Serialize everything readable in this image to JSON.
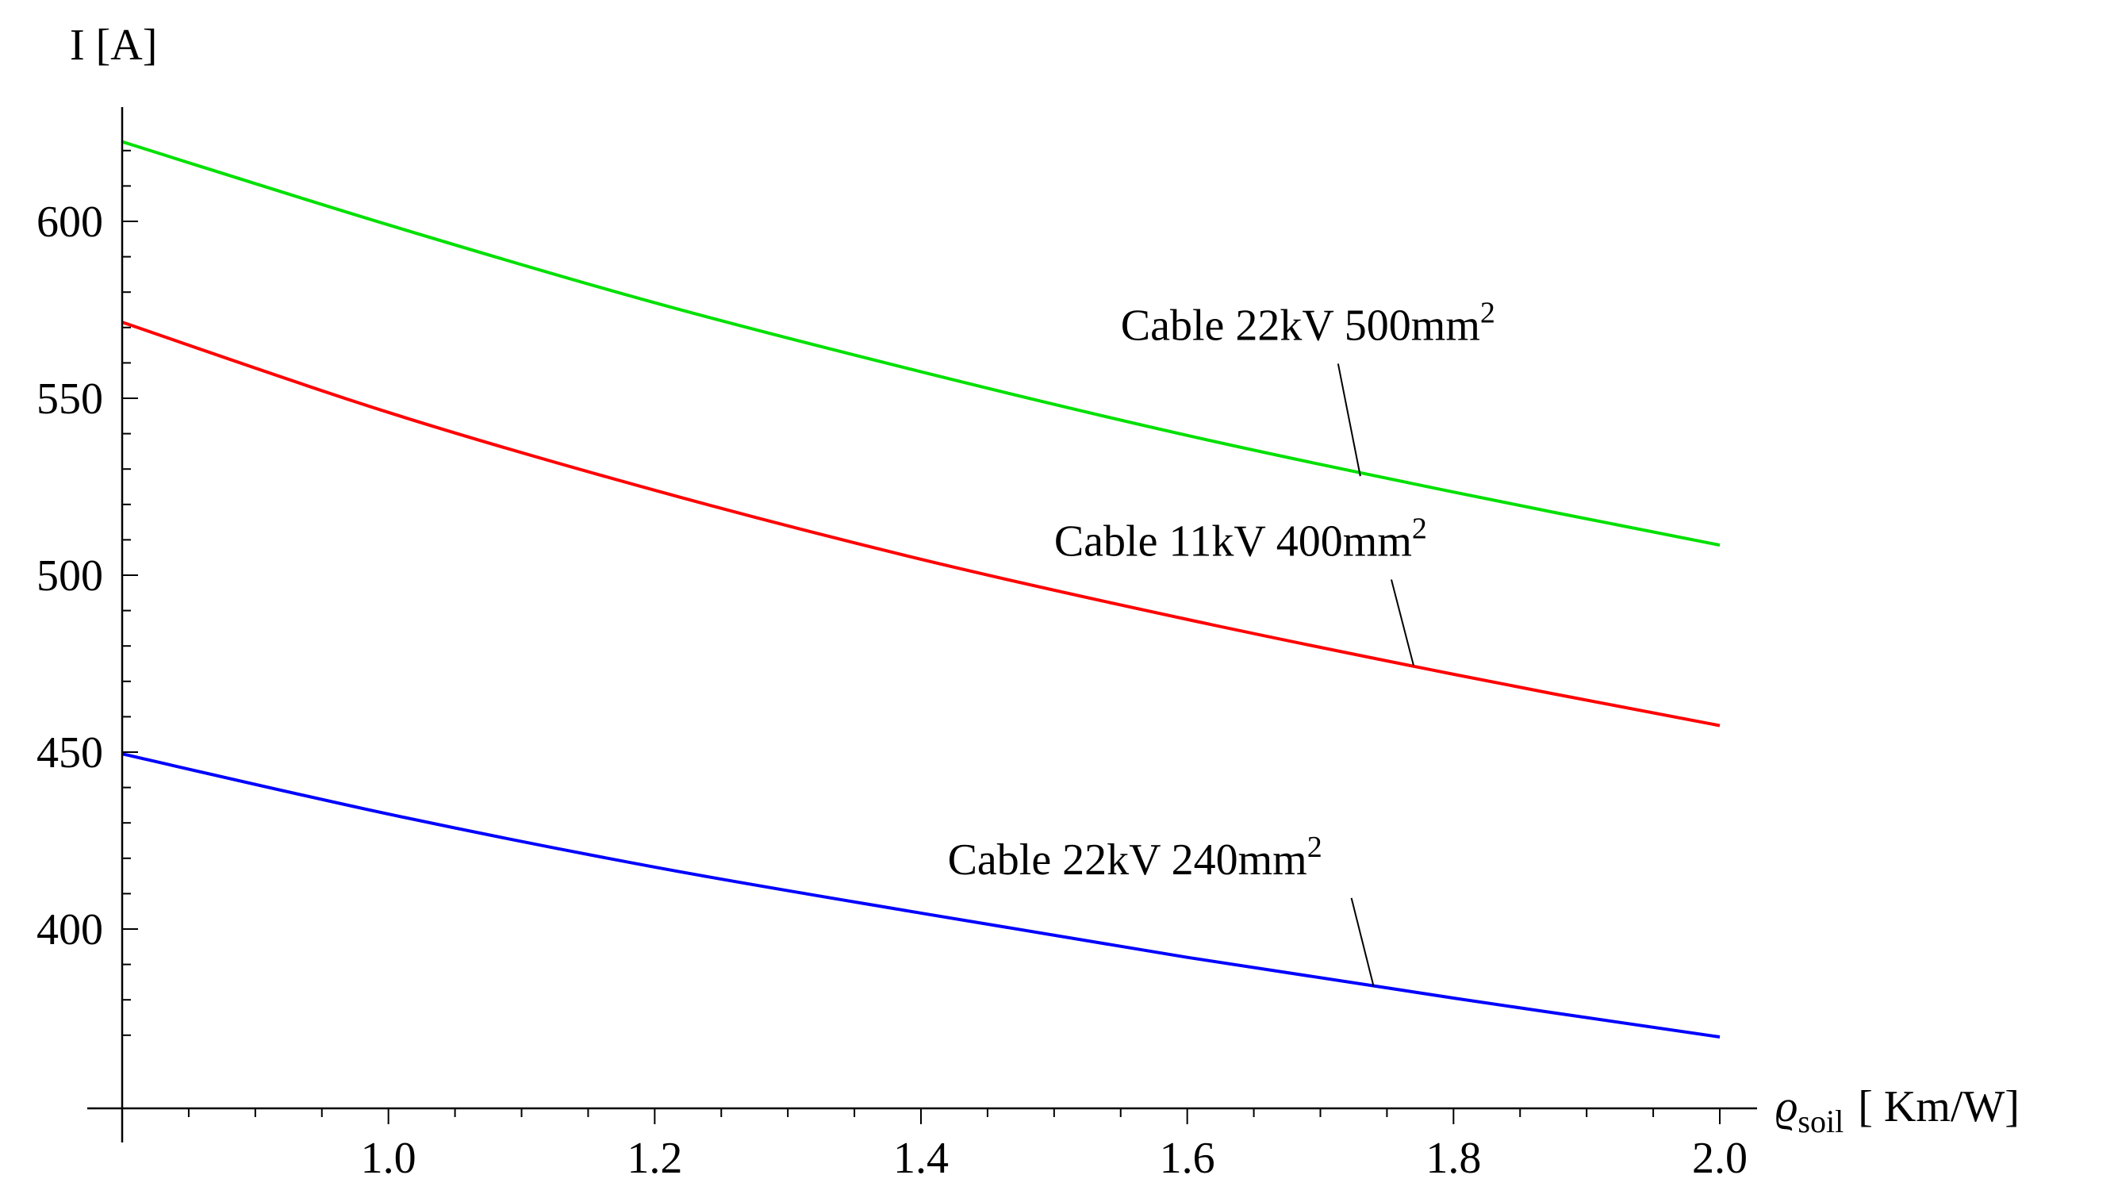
{
  "chart_data": {
    "type": "line",
    "title": "",
    "xlabel_symbol": "ϱ",
    "xlabel_sub": "soil",
    "xlabel_unit": "[ Km/W]",
    "ylabel": "I [A]",
    "xlim": [
      0.8,
      2.05
    ],
    "ylim": [
      358,
      630
    ],
    "xticks": [
      1.0,
      1.2,
      1.4,
      1.6,
      1.8,
      2.0
    ],
    "xtick_labels": [
      "1.0",
      "1.2",
      "1.4",
      "1.6",
      "1.8",
      "2.0"
    ],
    "xminor_step": 0.05,
    "yticks": [
      400,
      450,
      500,
      550,
      600
    ],
    "ytick_labels": [
      "400",
      "450",
      "500",
      "550",
      "600"
    ],
    "yminor_step": 10,
    "x": [
      0.8,
      1.0,
      1.2,
      1.4,
      1.6,
      1.8,
      2.0
    ],
    "series": [
      {
        "name": "Cable 22kV 500mm",
        "sup": "2",
        "color": "#00e000",
        "values": [
          622.5,
          599.0,
          577.0,
          557.5,
          539.5,
          523.5,
          508.5
        ],
        "label_at": [
          1.55,
          566.5
        ],
        "label_point": [
          1.73,
          528.0
        ]
      },
      {
        "name": "Cable 11kV 400mm",
        "sup": "2",
        "color": "#ff0000",
        "values": [
          571.5,
          546.0,
          524.0,
          504.5,
          487.5,
          472.0,
          457.5
        ],
        "label_at": [
          1.5,
          505.5
        ],
        "label_point": [
          1.77,
          474.5
        ]
      },
      {
        "name": "Cable 22kV 240mm",
        "sup": "2",
        "color": "#0000ff",
        "values": [
          449.5,
          432.5,
          417.5,
          404.5,
          392.0,
          380.5,
          369.5
        ],
        "label_at": [
          1.42,
          415.5
        ],
        "label_point": [
          1.74,
          383.8
        ]
      }
    ]
  }
}
